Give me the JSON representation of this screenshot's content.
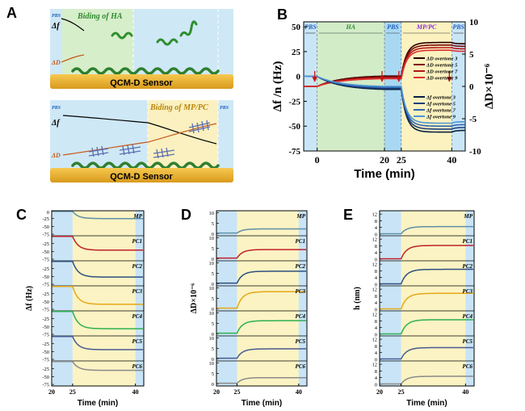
{
  "panel_labels": {
    "a": "A",
    "b": "B",
    "c": "C",
    "d": "D",
    "e": "E"
  },
  "panel_a": {
    "top": {
      "pbs": "PBS",
      "title": "Biding of HA",
      "df": "Δf",
      "dd": "ΔD",
      "sensor": "QCM-D Sensor"
    },
    "bottom": {
      "pbs_left": "PBS",
      "pbs_right": "PBS",
      "title": "Biding of MP/PC",
      "df": "Δf",
      "dd": "ΔD",
      "sensor": "QCM-D Sensor"
    }
  },
  "chart_data": [
    {
      "id": "B",
      "type": "line",
      "xlabel": "Time (min)",
      "ylabel_left": "Δf /n (Hz)",
      "ylabel_right": "ΔD×10⁻⁶",
      "xlim": [
        -4,
        44
      ],
      "ylim_left": [
        -75,
        55
      ],
      "ylim_right": [
        -10,
        10
      ],
      "xticks": [
        0,
        20,
        25,
        40
      ],
      "xtick_labels": [
        "0",
        "20",
        "25",
        "40"
      ],
      "yticks_left": [
        -75,
        -50,
        -25,
        0,
        25,
        50
      ],
      "yticks_left_labels": [
        "-75",
        "-50",
        "-25",
        "0",
        "25",
        "50"
      ],
      "yticks_right": [
        -10,
        -5,
        0,
        5,
        10
      ],
      "yticks_right_labels": [
        "-10",
        "-5",
        "0",
        "5",
        "10"
      ],
      "phases": [
        {
          "label": "PBS",
          "start": -4,
          "end": 0,
          "color": "#c9e6f7",
          "label_color": "#1f5fbf"
        },
        {
          "label": "HA",
          "start": 0,
          "end": 20,
          "color": "#d3ecc8",
          "label_color": "#2e8b2e"
        },
        {
          "label": "PBS",
          "start": 20,
          "end": 25,
          "color": "#a9d8f2",
          "label_color": "#1f5fbf"
        },
        {
          "label": "MP/PC",
          "start": 25,
          "end": 40,
          "color": "#fbf2c0",
          "label_color": "#8a2be2"
        },
        {
          "label": "PBS",
          "start": 40,
          "end": 44,
          "color": "#c9e6f7",
          "label_color": "#1f5fbf"
        }
      ],
      "arrows_x": [
        0,
        20,
        25,
        40
      ],
      "series": [
        {
          "name": "ΔD overtone 3",
          "axis": "right",
          "color": "#2b0000",
          "plateau_ha": 1.6,
          "plateau_mp": 6.8
        },
        {
          "name": "ΔD overtone 5",
          "axis": "right",
          "color": "#7a0a0a",
          "plateau_ha": 1.5,
          "plateau_mp": 6.4
        },
        {
          "name": "ΔD overtone 7",
          "axis": "right",
          "color": "#b01515",
          "plateau_ha": 1.35,
          "plateau_mp": 6.0
        },
        {
          "name": "ΔD overtone 9",
          "axis": "right",
          "color": "#e03030",
          "plateau_ha": 1.2,
          "plateau_mp": 5.6
        },
        {
          "name": "Δf overtone 3",
          "axis": "left",
          "color": "#0b1f3f",
          "plateau_ha": -13,
          "plateau_mp": -56
        },
        {
          "name": "Δf overtone 5",
          "axis": "left",
          "color": "#1b3f7a",
          "plateau_ha": -12,
          "plateau_mp": -53
        },
        {
          "name": "Δf overtone 7",
          "axis": "left",
          "color": "#2f66b0",
          "plateau_ha": -11,
          "plateau_mp": -50
        },
        {
          "name": "Δf overtone 9",
          "axis": "left",
          "color": "#4f95d4",
          "plateau_ha": -10,
          "plateau_mp": -47
        }
      ]
    },
    {
      "id": "C",
      "type": "line",
      "ylabel": "Δf (Hz)",
      "xlabel": "Time (min)",
      "xlim": [
        20,
        42
      ],
      "xticks": [
        20,
        25,
        40
      ],
      "xtick_labels": [
        "20",
        "25",
        "40"
      ],
      "row_ylim": [
        -80,
        0
      ],
      "row_yticks": [
        -25,
        -50,
        -75
      ],
      "row_ytick_labels": [
        "-25",
        "-50",
        "-75"
      ],
      "top_tick_label": "0",
      "rows": [
        {
          "label": "MP",
          "color": "#5f8fa8",
          "before": -2,
          "after": -25
        },
        {
          "label": "PC1",
          "color": "#c0202a",
          "before": -2,
          "after": -46
        },
        {
          "label": "PC2",
          "color": "#2f4f7f",
          "before": -2,
          "after": -52
        },
        {
          "label": "PC3",
          "color": "#e6a817",
          "before": -2,
          "after": -59
        },
        {
          "label": "PC4",
          "color": "#2fb04f",
          "before": -2,
          "after": -57
        },
        {
          "label": "PC5",
          "color": "#4a5a90",
          "before": -2,
          "after": -44
        },
        {
          "label": "PC6",
          "color": "#8a8a8a",
          "before": -2,
          "after": -30
        }
      ]
    },
    {
      "id": "D",
      "type": "line",
      "ylabel": "ΔD×10⁻⁶",
      "xlabel": "Time (min)",
      "xlim": [
        20,
        42
      ],
      "xticks": [
        20,
        25,
        40
      ],
      "xtick_labels": [
        "20",
        "25",
        "40"
      ],
      "row_ylim": [
        -1,
        11
      ],
      "row_yticks": [
        0,
        5,
        10
      ],
      "row_ytick_labels": [
        "0",
        "5",
        "10"
      ],
      "rows": [
        {
          "label": "MP",
          "color": "#5f8fa8",
          "before": 0.3,
          "after": 2.3
        },
        {
          "label": "PC1",
          "color": "#c0202a",
          "before": 0.3,
          "after": 4.4
        },
        {
          "label": "PC2",
          "color": "#2f4f7f",
          "before": 0.3,
          "after": 6.0
        },
        {
          "label": "PC3",
          "color": "#e6a817",
          "before": 0.3,
          "after": 8.2
        },
        {
          "label": "PC4",
          "color": "#2fb04f",
          "before": 0.3,
          "after": 6.3
        },
        {
          "label": "PC5",
          "color": "#4a5a90",
          "before": 0.3,
          "after": 4.8
        },
        {
          "label": "PC6",
          "color": "#8a8a8a",
          "before": 0.3,
          "after": 3.0
        }
      ]
    },
    {
      "id": "E",
      "type": "line",
      "ylabel": "h (nm)",
      "xlabel": "Time (min)",
      "xlim": [
        20,
        42
      ],
      "xticks": [
        20,
        25,
        40
      ],
      "xtick_labels": [
        "20",
        "25",
        "40"
      ],
      "row_ylim": [
        -1,
        14
      ],
      "row_yticks": [
        0,
        4,
        8,
        12
      ],
      "row_ytick_labels": [
        "0",
        "4",
        "8",
        "12"
      ],
      "rows": [
        {
          "label": "MP",
          "color": "#5f8fa8",
          "before": 0.2,
          "after": 4.5
        },
        {
          "label": "PC1",
          "color": "#c0202a",
          "before": 0.2,
          "after": 8.2
        },
        {
          "label": "PC2",
          "color": "#2f4f7f",
          "before": 0.2,
          "after": 8.9
        },
        {
          "label": "PC3",
          "color": "#e6a817",
          "before": 0.2,
          "after": 9.5
        },
        {
          "label": "PC4",
          "color": "#2fb04f",
          "before": 0.2,
          "after": 8.7
        },
        {
          "label": "PC5",
          "color": "#4a5a90",
          "before": 0.2,
          "after": 7.0
        },
        {
          "label": "PC6",
          "color": "#8a8a8a",
          "before": 0.2,
          "after": 4.8
        }
      ]
    }
  ]
}
